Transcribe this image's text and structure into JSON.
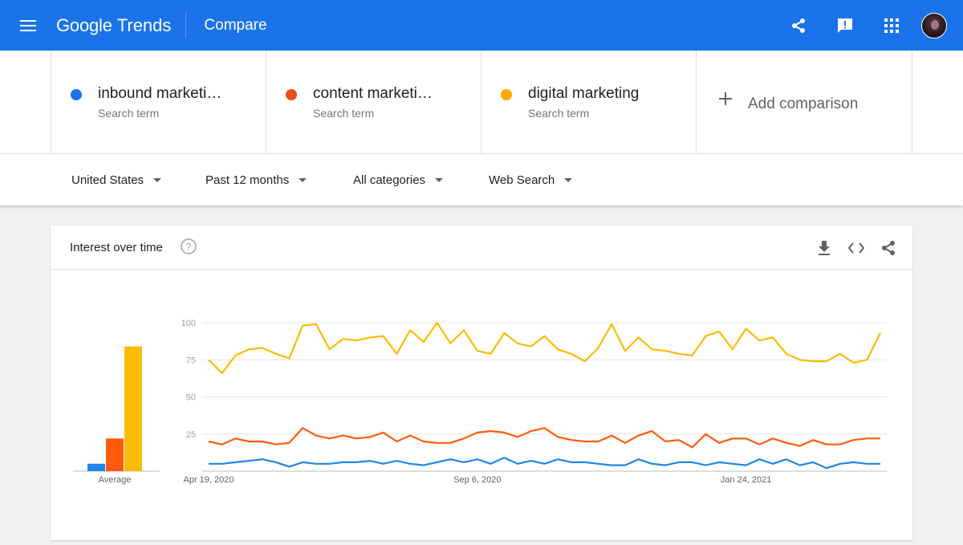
{
  "header": {
    "logo_google": "Google",
    "logo_trends": "Trends",
    "page_title": "Compare"
  },
  "terms": [
    {
      "name": "inbound marketi…",
      "sub": "Search term",
      "color": "#1a73e8"
    },
    {
      "name": "content marketi…",
      "sub": "Search term",
      "color": "#e8501a"
    },
    {
      "name": "digital marketing",
      "sub": "Search term",
      "color": "#f9ab00"
    }
  ],
  "add_comparison": "Add comparison",
  "filters": {
    "region": "United States",
    "time": "Past 12 months",
    "category": "All categories",
    "search_type": "Web Search"
  },
  "card": {
    "title": "Interest over time"
  },
  "chart_data": {
    "type": "line",
    "y_ticks": [
      25,
      50,
      75,
      100
    ],
    "ylim": [
      0,
      100
    ],
    "x_labels": [
      "Apr 19, 2020",
      "Sep 6, 2020",
      "Jan 24, 2021"
    ],
    "x_label_indices": [
      0,
      20,
      40
    ],
    "average_label": "Average",
    "averages": [
      5,
      22,
      84
    ],
    "series": [
      {
        "color": "#fbbc04",
        "values": [
          75,
          66,
          78,
          82,
          83,
          79,
          76,
          98,
          99,
          82,
          89,
          88,
          90,
          91,
          79,
          95,
          87,
          100,
          86,
          95,
          81,
          79,
          93,
          86,
          84,
          91,
          82,
          79,
          74,
          83,
          99,
          81,
          90,
          82,
          81,
          79,
          78,
          91,
          94,
          82,
          96,
          88,
          90,
          79,
          75,
          74,
          74,
          79,
          73,
          75,
          93
        ]
      },
      {
        "color": "#ff5b0a",
        "values": [
          20,
          18,
          22,
          20,
          20,
          18,
          19,
          29,
          24,
          22,
          24,
          22,
          23,
          26,
          20,
          24,
          20,
          19,
          19,
          22,
          26,
          27,
          26,
          23,
          27,
          29,
          23,
          21,
          20,
          20,
          24,
          19,
          24,
          27,
          20,
          21,
          16,
          25,
          19,
          22,
          22,
          18,
          22,
          19,
          17,
          21,
          18,
          18,
          21,
          22,
          22
        ]
      },
      {
        "color": "#1e88e5",
        "values": [
          5,
          5,
          6,
          7,
          8,
          6,
          3,
          6,
          5,
          5,
          6,
          6,
          7,
          5,
          7,
          5,
          4,
          6,
          8,
          6,
          8,
          5,
          9,
          5,
          7,
          5,
          8,
          6,
          6,
          5,
          4,
          4,
          8,
          5,
          4,
          6,
          6,
          4,
          6,
          5,
          4,
          8,
          5,
          8,
          4,
          6,
          2,
          5,
          6,
          5,
          5
        ]
      }
    ]
  }
}
